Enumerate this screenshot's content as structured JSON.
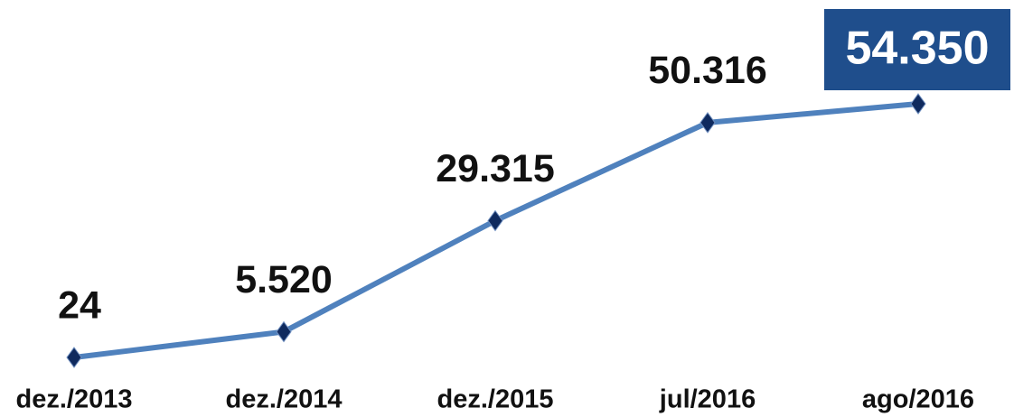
{
  "chart_data": {
    "type": "line",
    "categories": [
      "dez./2013",
      "dez./2014",
      "dez./2015",
      "jul/2016",
      "ago/2016"
    ],
    "values": [
      24,
      5520,
      29315,
      50316,
      54350
    ],
    "value_labels": [
      "24",
      "5.520",
      "29.315",
      "50.316",
      "54.350"
    ],
    "color": "#4f81bd",
    "marker_color": "#0f2a5e"
  }
}
